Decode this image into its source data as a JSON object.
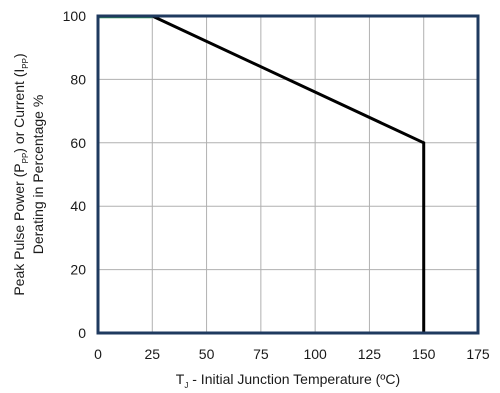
{
  "chart_data": {
    "type": "line",
    "title": "",
    "xlabel": {
      "main": "T",
      "sub": "J",
      "rest": " - Initial Junction Temperature (ºC)"
    },
    "ylabel": {
      "line1": [
        {
          "t": "Peak Pulse Power (P"
        },
        {
          "t": "PP",
          "sub": true
        },
        {
          "t": ") or Current (I"
        },
        {
          "t": "PP",
          "sub": true
        },
        {
          "t": ")"
        }
      ],
      "line2": "Derating in Percentage %"
    },
    "xlim": [
      0,
      175
    ],
    "ylim": [
      0,
      100
    ],
    "xticks": [
      0,
      25,
      50,
      75,
      100,
      125,
      150,
      175
    ],
    "yticks": [
      0,
      20,
      40,
      60,
      80,
      100
    ],
    "grid": true,
    "series": [
      {
        "x": [
          0,
          25,
          150,
          150
        ],
        "y": [
          100,
          100,
          60,
          0
        ]
      }
    ],
    "colors": {
      "frame": "#1f3a5f",
      "grid": "#b0b0b0",
      "line": "#000000",
      "flat_segment": "#2e8b57"
    }
  }
}
